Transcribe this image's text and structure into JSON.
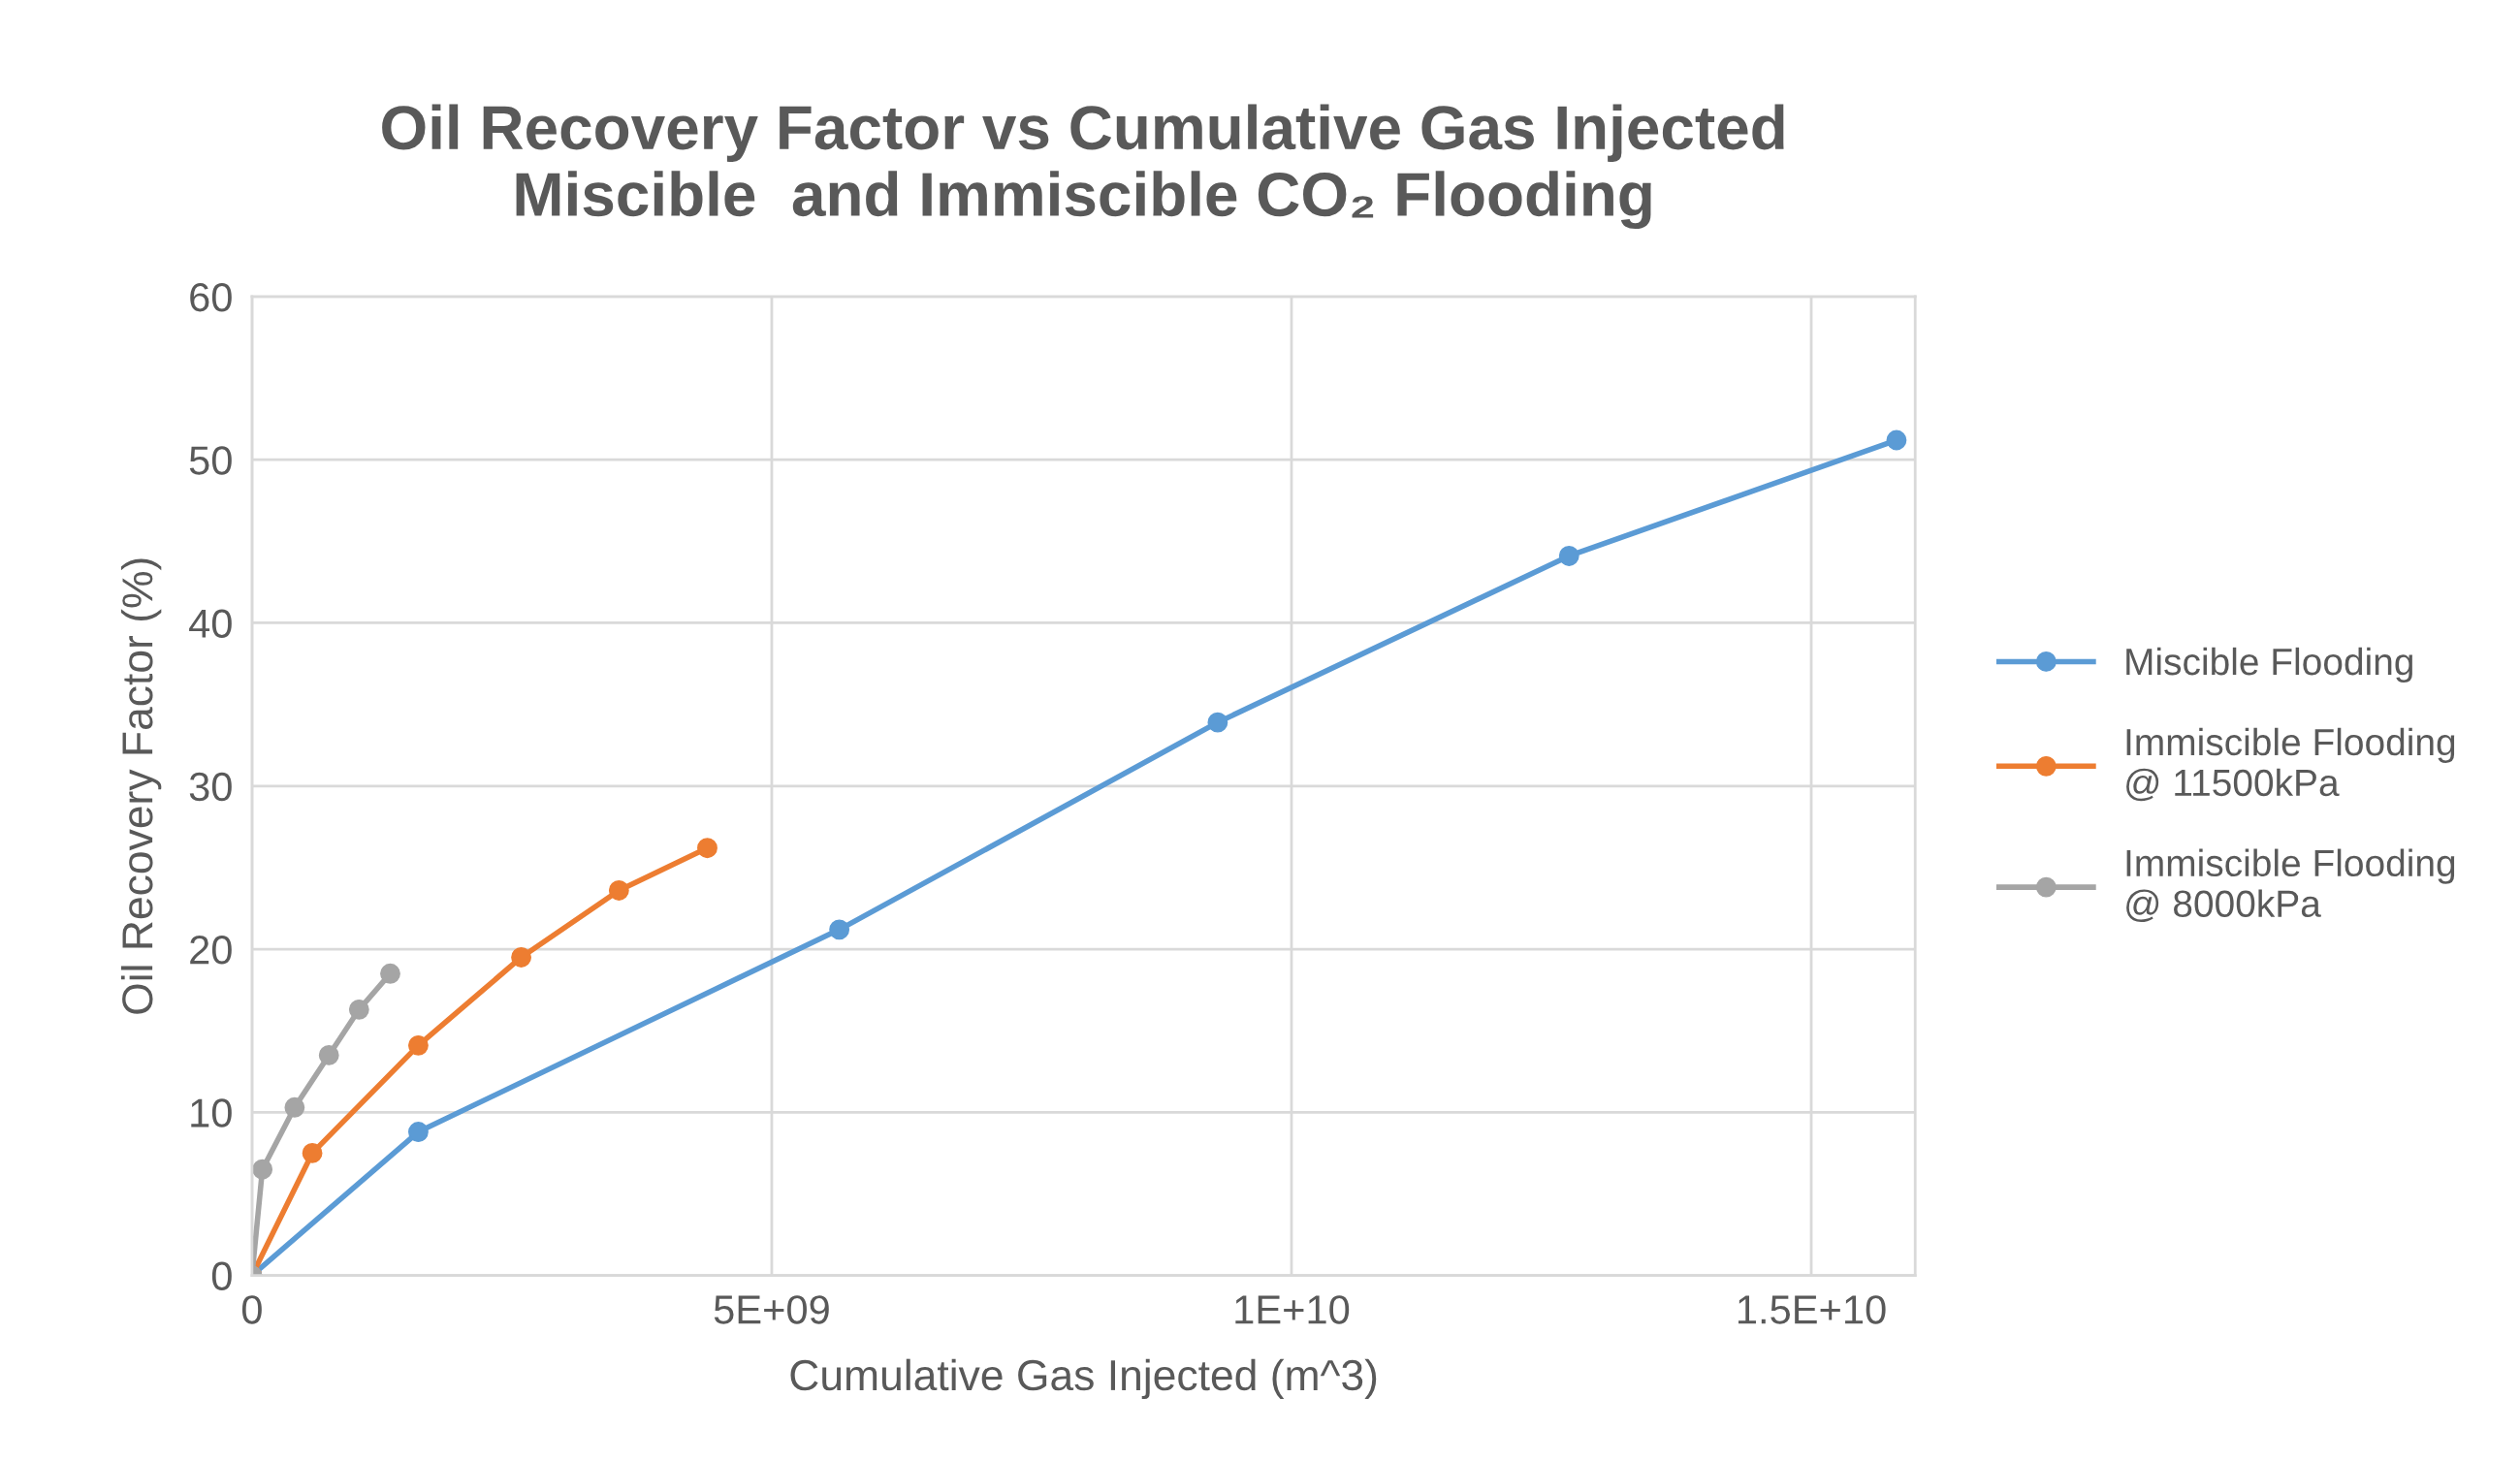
{
  "chart_data": {
    "type": "line",
    "title": "Oil Recovery Factor vs Cumulative Gas Injected\nMiscible  and Immiscible CO₂ Flooding",
    "xlabel": "Cumulative Gas Injected (m^3)",
    "ylabel": "Oil Recovery Factor (%)",
    "series": [
      {
        "name": "Miscible Flooding",
        "color": "#5b9bd5",
        "x": [
          0,
          1600000000.0,
          5650000000.0,
          9290000000.0,
          12670000000.0,
          15820000000.0
        ],
        "values": [
          0,
          8.8,
          21.2,
          33.9,
          44.1,
          51.2
        ]
      },
      {
        "name": "Immiscible Flooding\n@ 11500kPa",
        "color": "#ed7d31",
        "x": [
          0,
          580000000.0,
          1600000000.0,
          2590000000.0,
          3530000000.0,
          4380000000.0
        ],
        "values": [
          0,
          7.5,
          14.1,
          19.5,
          23.6,
          26.2
        ]
      },
      {
        "name": "Immiscible Flooding\n@ 8000kPa",
        "color": "#a5a5a5",
        "x": [
          0,
          100000000.0,
          410000000.0,
          740000000.0,
          1030000000.0,
          1330000000.0
        ],
        "values": [
          0,
          6.5,
          10.3,
          13.5,
          16.3,
          18.5
        ]
      }
    ],
    "xlim": [
      0,
      16000000000.0
    ],
    "xticks": [
      0,
      {
        "value": 5000000000.0,
        "label": "5E+09"
      },
      {
        "value": 10000000000.0,
        "label": "1E+10"
      },
      {
        "value": 15000000000.0,
        "label": "1.5E+10"
      }
    ],
    "ylim": [
      0,
      60
    ],
    "yticks": [
      0,
      10,
      20,
      30,
      40,
      50,
      60
    ],
    "grid": true,
    "legend": "right",
    "marker": "circle",
    "line_style": "solid"
  }
}
